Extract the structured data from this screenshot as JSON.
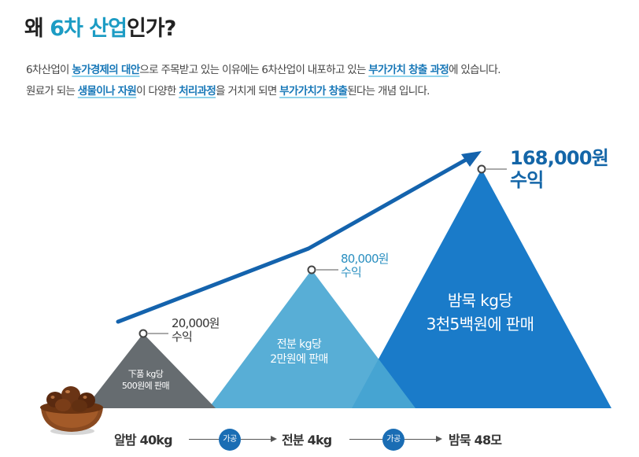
{
  "title": {
    "prefix": "왜 ",
    "accent": "6차 산업",
    "suffix": "인가?"
  },
  "description": {
    "line1": [
      {
        "text": "6차산업이 ",
        "hl": false
      },
      {
        "text": "농가경제의 대안",
        "hl": true
      },
      {
        "text": "으로 주목받고 있는 이유에는 6차산업이 내포하고 있는 ",
        "hl": false
      },
      {
        "text": "부가가치 창출 과정",
        "hl": true
      },
      {
        "text": "에 있습니다.",
        "hl": false
      }
    ],
    "line2": [
      {
        "text": "원료가 되는 ",
        "hl": false
      },
      {
        "text": "생물이나 자원",
        "hl": true
      },
      {
        "text": "이 다양한 ",
        "hl": false
      },
      {
        "text": "처리과정",
        "hl": true
      },
      {
        "text": "을 거치게 되면 ",
        "hl": false
      },
      {
        "text": "부가가치가 창출",
        "hl": true
      },
      {
        "text": "된다는 개념 입니다.",
        "hl": false
      }
    ]
  },
  "stages": [
    {
      "line1": "下품 kg당",
      "line2": "500원에 판매",
      "profit_amount": "20,000원",
      "profit_label": "수익",
      "color": "#6b7176"
    },
    {
      "line1": "전분 kg당",
      "line2": "2만원에 판매",
      "profit_amount": "80,000원",
      "profit_label": "수익",
      "color": "#4aa7d2"
    },
    {
      "line1": "밤묵 kg당",
      "line2": "3천5백원에 판매",
      "profit_amount": "168,000원",
      "profit_label": "수익",
      "color": "#1a7bc9"
    }
  ],
  "flow": {
    "step1": "알밤 40kg",
    "badge1": "가공",
    "step2": "전분 4kg",
    "badge2": "가공",
    "step3": "밤묵 48모"
  },
  "icons": {
    "chestnut_bowl": "chestnut-bowl-icon",
    "trend_arrow": "trend-arrow-icon"
  },
  "colors": {
    "accent": "#1c9cc4",
    "highlight": "#1878b8",
    "badge": "#1a6db4",
    "arrow": "#1463ad"
  }
}
